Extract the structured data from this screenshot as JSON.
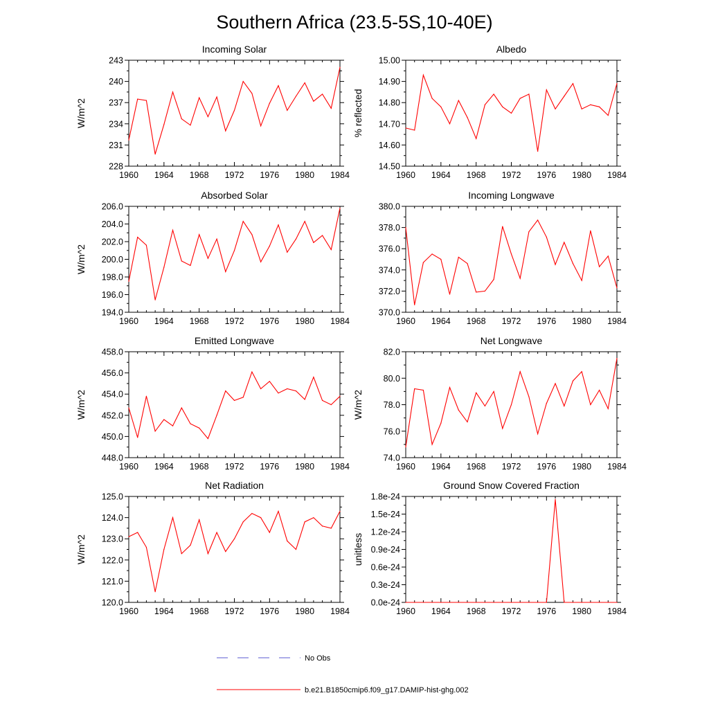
{
  "figure": {
    "title": "Southern Africa (23.5-5S,10-40E)"
  },
  "legend": {
    "items": [
      {
        "label": "No Obs",
        "style": "dashed",
        "color": "#5a5ad0"
      },
      {
        "label": "b.e21.B1850cmip6.f09_g17.DAMIP-hist-ghg.002",
        "style": "solid",
        "color": "#ff0000"
      }
    ]
  },
  "chart_data": [
    {
      "type": "line",
      "title": "Incoming Solar",
      "xlabel": "",
      "ylabel": "W/m^2",
      "xlim": [
        1960,
        1984
      ],
      "ylim": [
        228,
        243
      ],
      "x_ticks": [
        1960,
        1964,
        1968,
        1972,
        1976,
        1980,
        1984
      ],
      "y_ticks": [
        228,
        231,
        234,
        237,
        240,
        243
      ],
      "y_tick_labels": [
        "228",
        "231",
        "234",
        "237",
        "240",
        "243"
      ],
      "x": [
        1960,
        1961,
        1962,
        1963,
        1964,
        1965,
        1966,
        1967,
        1968,
        1969,
        1970,
        1971,
        1972,
        1973,
        1974,
        1975,
        1976,
        1977,
        1978,
        1979,
        1980,
        1981,
        1982,
        1983,
        1984
      ],
      "series": [
        {
          "name": "b.e21.B1850cmip6.f09_g17.DAMIP-hist-ghg.002",
          "color": "#ff0000",
          "values": [
            231.7,
            237.5,
            237.3,
            229.7,
            233.9,
            238.5,
            234.7,
            233.8,
            237.7,
            235.0,
            237.8,
            233.0,
            235.9,
            240.0,
            238.3,
            233.7,
            236.9,
            239.4,
            235.9,
            237.9,
            239.8,
            237.2,
            238.2,
            236.2,
            242.0
          ]
        }
      ]
    },
    {
      "type": "line",
      "title": "Albedo",
      "xlabel": "",
      "ylabel": "% reflected",
      "xlim": [
        1960,
        1984
      ],
      "ylim": [
        14.5,
        15.0
      ],
      "x_ticks": [
        1960,
        1964,
        1968,
        1972,
        1976,
        1980,
        1984
      ],
      "y_ticks": [
        14.5,
        14.6,
        14.7,
        14.8,
        14.9,
        15.0
      ],
      "y_tick_labels": [
        "14.50",
        "14.60",
        "14.70",
        "14.80",
        "14.90",
        "15.00"
      ],
      "x": [
        1960,
        1961,
        1962,
        1963,
        1964,
        1965,
        1966,
        1967,
        1968,
        1969,
        1970,
        1971,
        1972,
        1973,
        1974,
        1975,
        1976,
        1977,
        1978,
        1979,
        1980,
        1981,
        1982,
        1983,
        1984
      ],
      "series": [
        {
          "name": "b.e21.B1850cmip6.f09_g17.DAMIP-hist-ghg.002",
          "color": "#ff0000",
          "values": [
            14.68,
            14.67,
            14.93,
            14.82,
            14.78,
            14.7,
            14.81,
            14.73,
            14.63,
            14.79,
            14.84,
            14.78,
            14.75,
            14.82,
            14.84,
            14.57,
            14.86,
            14.77,
            14.83,
            14.89,
            14.77,
            14.79,
            14.78,
            14.74,
            14.89
          ]
        }
      ]
    },
    {
      "type": "line",
      "title": "Absorbed Solar",
      "xlabel": "",
      "ylabel": "W/m^2",
      "xlim": [
        1960,
        1984
      ],
      "ylim": [
        194.0,
        206.0
      ],
      "x_ticks": [
        1960,
        1964,
        1968,
        1972,
        1976,
        1980,
        1984
      ],
      "y_ticks": [
        194,
        196,
        198,
        200,
        202,
        204,
        206
      ],
      "y_tick_labels": [
        "194.0",
        "196.0",
        "198.0",
        "200.0",
        "202.0",
        "204.0",
        "206.0"
      ],
      "x": [
        1960,
        1961,
        1962,
        1963,
        1964,
        1965,
        1966,
        1967,
        1968,
        1969,
        1970,
        1971,
        1972,
        1973,
        1974,
        1975,
        1976,
        1977,
        1978,
        1979,
        1980,
        1981,
        1982,
        1983,
        1984
      ],
      "series": [
        {
          "name": "b.e21.B1850cmip6.f09_g17.DAMIP-hist-ghg.002",
          "color": "#ff0000",
          "values": [
            197.5,
            202.5,
            201.6,
            195.4,
            199.1,
            203.3,
            199.8,
            199.3,
            202.8,
            200.1,
            202.3,
            198.6,
            201.0,
            204.3,
            202.8,
            199.7,
            201.5,
            203.9,
            200.8,
            202.3,
            204.3,
            201.9,
            202.7,
            201.1,
            205.8
          ]
        }
      ]
    },
    {
      "type": "line",
      "title": "Incoming Longwave",
      "xlabel": "",
      "ylabel": "",
      "xlim": [
        1960,
        1984
      ],
      "ylim": [
        370.0,
        380.0
      ],
      "x_ticks": [
        1960,
        1964,
        1968,
        1972,
        1976,
        1980,
        1984
      ],
      "y_ticks": [
        370,
        372,
        374,
        376,
        378,
        380
      ],
      "y_tick_labels": [
        "370.0",
        "372.0",
        "374.0",
        "376.0",
        "378.0",
        "380.0"
      ],
      "x": [
        1960,
        1961,
        1962,
        1963,
        1964,
        1965,
        1966,
        1967,
        1968,
        1969,
        1970,
        1971,
        1972,
        1973,
        1974,
        1975,
        1976,
        1977,
        1978,
        1979,
        1980,
        1981,
        1982,
        1983,
        1984
      ],
      "series": [
        {
          "name": "b.e21.B1850cmip6.f09_g17.DAMIP-hist-ghg.002",
          "color": "#ff0000",
          "values": [
            378.0,
            370.7,
            374.7,
            375.5,
            375.0,
            371.7,
            375.2,
            374.6,
            371.9,
            372.0,
            373.1,
            378.1,
            375.5,
            373.2,
            377.6,
            378.7,
            377.1,
            374.5,
            376.6,
            374.6,
            373.0,
            377.7,
            374.3,
            375.3,
            372.3
          ]
        }
      ]
    },
    {
      "type": "line",
      "title": "Emitted Longwave",
      "xlabel": "",
      "ylabel": "W/m^2",
      "xlim": [
        1960,
        1984
      ],
      "ylim": [
        448.0,
        458.0
      ],
      "x_ticks": [
        1960,
        1964,
        1968,
        1972,
        1976,
        1980,
        1984
      ],
      "y_ticks": [
        448,
        450,
        452,
        454,
        456,
        458
      ],
      "y_tick_labels": [
        "448.0",
        "450.0",
        "452.0",
        "454.0",
        "456.0",
        "458.0"
      ],
      "x": [
        1960,
        1961,
        1962,
        1963,
        1964,
        1965,
        1966,
        1967,
        1968,
        1969,
        1970,
        1971,
        1972,
        1973,
        1974,
        1975,
        1976,
        1977,
        1978,
        1979,
        1980,
        1981,
        1982,
        1983,
        1984
      ],
      "series": [
        {
          "name": "b.e21.B1850cmip6.f09_g17.DAMIP-hist-ghg.002",
          "color": "#ff0000",
          "values": [
            452.7,
            449.9,
            453.8,
            450.5,
            451.6,
            451.0,
            452.7,
            451.2,
            450.8,
            449.8,
            452.0,
            454.3,
            453.4,
            453.7,
            456.1,
            454.5,
            455.2,
            454.1,
            454.5,
            454.3,
            453.5,
            455.6,
            453.4,
            453.0,
            453.8
          ]
        }
      ]
    },
    {
      "type": "line",
      "title": "Net Longwave",
      "xlabel": "",
      "ylabel": "W/m^2",
      "xlim": [
        1960,
        1984
      ],
      "ylim": [
        74.0,
        82.0
      ],
      "x_ticks": [
        1960,
        1964,
        1968,
        1972,
        1976,
        1980,
        1984
      ],
      "y_ticks": [
        74,
        76,
        78,
        80,
        82
      ],
      "y_tick_labels": [
        "74.0",
        "76.0",
        "78.0",
        "80.0",
        "82.0"
      ],
      "x": [
        1960,
        1961,
        1962,
        1963,
        1964,
        1965,
        1966,
        1967,
        1968,
        1969,
        1970,
        1971,
        1972,
        1973,
        1974,
        1975,
        1976,
        1977,
        1978,
        1979,
        1980,
        1981,
        1982,
        1983,
        1984
      ],
      "series": [
        {
          "name": "b.e21.B1850cmip6.f09_g17.DAMIP-hist-ghg.002",
          "color": "#ff0000",
          "values": [
            74.8,
            79.2,
            79.1,
            75.0,
            76.6,
            79.3,
            77.6,
            76.7,
            78.9,
            77.9,
            79.0,
            76.2,
            78.0,
            80.5,
            78.6,
            75.8,
            78.1,
            79.6,
            77.9,
            79.8,
            80.5,
            78.0,
            79.1,
            77.7,
            81.5
          ]
        }
      ]
    },
    {
      "type": "line",
      "title": "Net Radiation",
      "xlabel": "",
      "ylabel": "W/m^2",
      "xlim": [
        1960,
        1984
      ],
      "ylim": [
        120.0,
        125.0
      ],
      "x_ticks": [
        1960,
        1964,
        1968,
        1972,
        1976,
        1980,
        1984
      ],
      "y_ticks": [
        120,
        121,
        122,
        123,
        124,
        125
      ],
      "y_tick_labels": [
        "120.0",
        "121.0",
        "122.0",
        "123.0",
        "124.0",
        "125.0"
      ],
      "x": [
        1960,
        1961,
        1962,
        1963,
        1964,
        1965,
        1966,
        1967,
        1968,
        1969,
        1970,
        1971,
        1972,
        1973,
        1974,
        1975,
        1976,
        1977,
        1978,
        1979,
        1980,
        1981,
        1982,
        1983,
        1984
      ],
      "series": [
        {
          "name": "b.e21.B1850cmip6.f09_g17.DAMIP-hist-ghg.002",
          "color": "#ff0000",
          "values": [
            123.1,
            123.3,
            122.6,
            120.5,
            122.5,
            124.0,
            122.3,
            122.7,
            123.9,
            122.3,
            123.3,
            122.4,
            123.0,
            123.8,
            124.2,
            124.0,
            123.3,
            124.3,
            122.9,
            122.5,
            123.8,
            124.0,
            123.6,
            123.5,
            124.3
          ]
        }
      ]
    },
    {
      "type": "line",
      "title": "Ground Snow Covered Fraction",
      "xlabel": "",
      "ylabel": "unitless",
      "xlim": [
        1960,
        1984
      ],
      "ylim": [
        0,
        1.8e-24
      ],
      "x_ticks": [
        1960,
        1964,
        1968,
        1972,
        1976,
        1980,
        1984
      ],
      "y_ticks": [
        0,
        3e-25,
        6e-25,
        9e-25,
        1.2e-24,
        1.5e-24,
        1.8e-24
      ],
      "y_tick_labels": [
        "0.0e-24",
        "0.3e-24",
        "0.6e-24",
        "0.9e-24",
        "1.2e-24",
        "1.5e-24",
        "1.8e-24"
      ],
      "x": [
        1960,
        1961,
        1962,
        1963,
        1964,
        1965,
        1966,
        1967,
        1968,
        1969,
        1970,
        1971,
        1972,
        1973,
        1974,
        1975,
        1976,
        1977,
        1978,
        1979,
        1980,
        1981,
        1982,
        1983,
        1984
      ],
      "series": [
        {
          "name": "b.e21.B1850cmip6.f09_g17.DAMIP-hist-ghg.002",
          "color": "#ff0000",
          "values": [
            0,
            0,
            0,
            0,
            0,
            0,
            0,
            0,
            0,
            0,
            0,
            0,
            0,
            0,
            0,
            0,
            0,
            1.75e-24,
            0,
            0,
            0,
            0,
            0,
            0,
            0
          ]
        }
      ]
    }
  ]
}
